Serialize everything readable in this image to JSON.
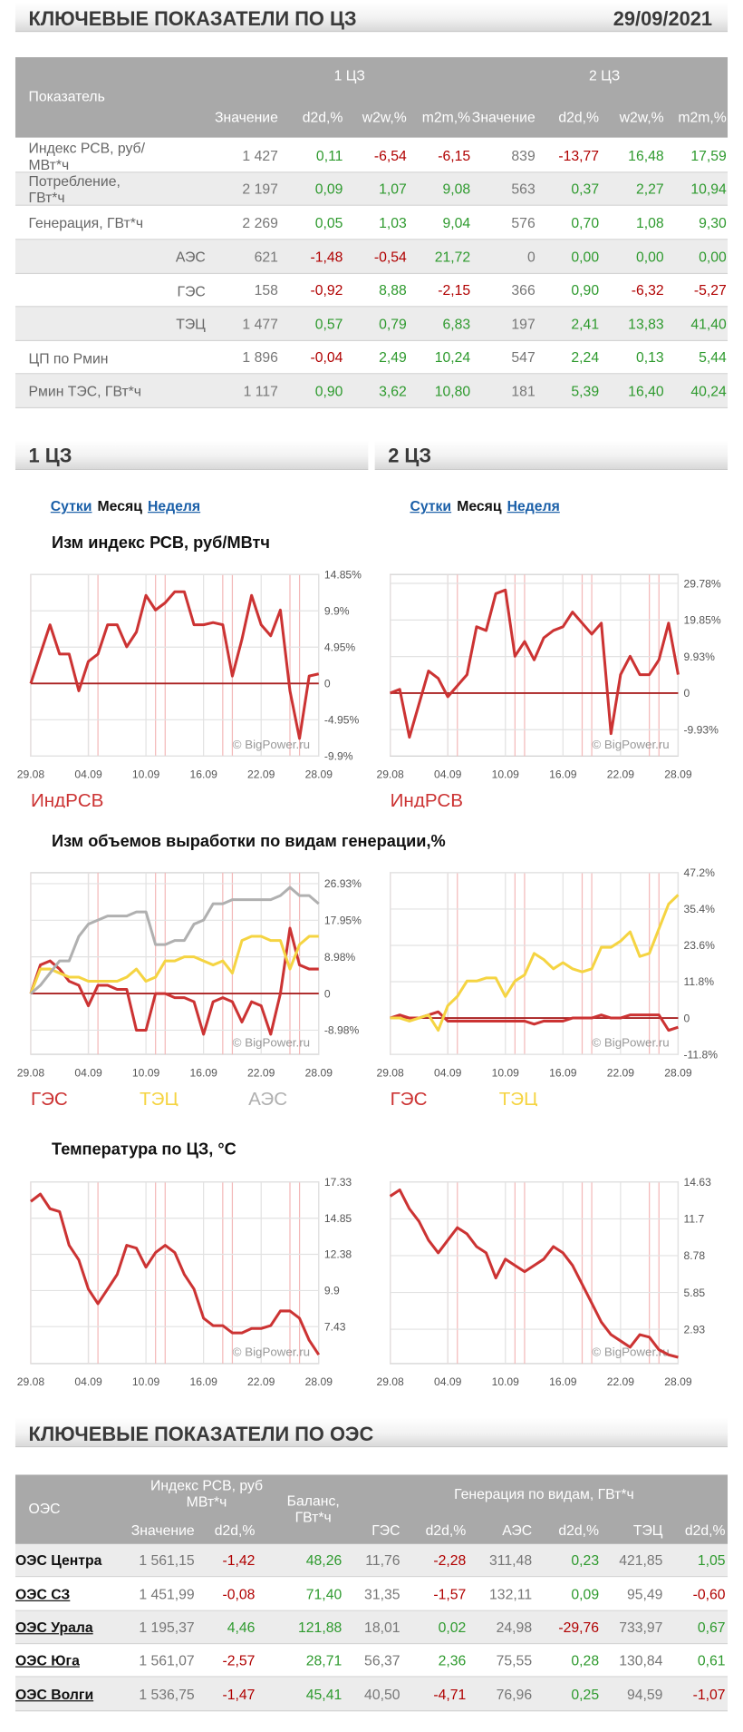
{
  "header": {
    "title": "КЛЮЧЕВЫЕ ПОКАЗАТЕЛИ ПО ЦЗ",
    "date": "29/09/2021"
  },
  "table1": {
    "columns": [
      "Показатель",
      "1 ЦЗ",
      "2 ЦЗ"
    ],
    "subcolumns": [
      "Значение",
      "d2d,%",
      "w2w,%",
      "m2m,%",
      "Значение",
      "d2d,%",
      "w2w,%",
      "m2m,%"
    ],
    "rows": [
      {
        "label": "Индекс РСВ, руб/МВт*ч",
        "indent": false,
        "cells": [
          "1 427",
          "0,11",
          "-6,54",
          "-6,15",
          "839",
          "-13,77",
          "16,48",
          "17,59"
        ]
      },
      {
        "label": "Потребление, ГВт*ч",
        "indent": false,
        "cells": [
          "2 197",
          "0,09",
          "1,07",
          "9,08",
          "563",
          "0,37",
          "2,27",
          "10,94"
        ]
      },
      {
        "label": "Генерация, ГВт*ч",
        "indent": false,
        "cells": [
          "2 269",
          "0,05",
          "1,03",
          "9,04",
          "576",
          "0,70",
          "1,08",
          "9,30"
        ]
      },
      {
        "label": "АЭС",
        "indent": true,
        "cells": [
          "621",
          "-1,48",
          "-0,54",
          "21,72",
          "0",
          "0,00",
          "0,00",
          "0,00"
        ]
      },
      {
        "label": "ГЭС",
        "indent": true,
        "cells": [
          "158",
          "-0,92",
          "8,88",
          "-2,15",
          "366",
          "0,90",
          "-6,32",
          "-5,27"
        ]
      },
      {
        "label": "ТЭЦ",
        "indent": true,
        "cells": [
          "1 477",
          "0,57",
          "0,79",
          "6,83",
          "197",
          "2,41",
          "13,83",
          "41,40"
        ]
      },
      {
        "label": "ЦП по Рмин",
        "indent": false,
        "cells": [
          "1 896",
          "-0,04",
          "2,49",
          "10,24",
          "547",
          "2,24",
          "0,13",
          "5,44"
        ]
      },
      {
        "label": "Рмин ТЭС, ГВт*ч",
        "indent": false,
        "cells": [
          "1 117",
          "0,90",
          "3,62",
          "10,80",
          "181",
          "5,39",
          "16,40",
          "40,24"
        ]
      }
    ]
  },
  "zones": [
    "1 ЦЗ",
    "2 ЦЗ"
  ],
  "period_links": [
    "Сутки",
    "Месяц",
    "Неделя"
  ],
  "period_active": 1,
  "chart_titles": [
    "Изм индекс РСВ, руб/МВтч",
    "Изм объемов выработки по видам генерации,%",
    "Температура по ЦЗ, °C"
  ],
  "chart_data": [
    {
      "type": "line",
      "watermark": "© BigPower.ru",
      "categories": [
        "29.08",
        null,
        null,
        null,
        null,
        null,
        "04.09",
        null,
        null,
        null,
        null,
        null,
        "10.09",
        null,
        null,
        null,
        null,
        null,
        "16.09",
        null,
        null,
        null,
        null,
        null,
        "22.09",
        null,
        null,
        null,
        null,
        null,
        "28.09"
      ],
      "series": [
        {
          "name": "ИндРСВ",
          "color": "#cc3333",
          "values": [
            0,
            4,
            8,
            4,
            4,
            -1,
            3,
            4,
            8,
            8,
            5,
            7,
            12,
            10,
            11,
            12.5,
            12.5,
            8,
            8,
            8.3,
            8,
            1,
            6,
            12,
            8,
            6.5,
            10,
            -1,
            -7.5,
            1,
            1.3
          ]
        }
      ],
      "ylim": [
        -9.9,
        14.85
      ],
      "yticks": [
        {
          "value": 14.85,
          "label": "14.85%"
        },
        {
          "value": 9.9,
          "label": "9.9%"
        },
        {
          "value": 4.95,
          "label": "4.95%"
        },
        0,
        {
          "value": -4.95,
          "label": "-4.95%"
        },
        {
          "value": -9.9,
          "label": "-9.9%"
        }
      ],
      "zero_line_color": "#aa2222"
    },
    {
      "type": "line",
      "watermark": "© BigPower.ru",
      "categories": [
        "29.08",
        null,
        null,
        null,
        null,
        null,
        "04.09",
        null,
        null,
        null,
        null,
        null,
        "10.09",
        null,
        null,
        null,
        null,
        null,
        "16.09",
        null,
        null,
        null,
        null,
        null,
        "22.09",
        null,
        null,
        null,
        null,
        null,
        "28.09"
      ],
      "series": [
        {
          "name": "ИндРСВ",
          "color": "#cc3333",
          "values": [
            0,
            1,
            -12,
            -3,
            6,
            4,
            -1,
            2,
            5,
            18,
            17,
            27,
            28,
            10,
            14,
            9,
            15,
            17,
            18,
            22,
            19,
            16,
            19,
            -11,
            5,
            10,
            5,
            5,
            9,
            19,
            5
          ]
        }
      ],
      "ylim": [
        -17.1,
        32.2
      ],
      "yticks": [
        {
          "value": 29.78,
          "label": "29.78%"
        },
        {
          "value": 19.85,
          "label": "19.85%"
        },
        {
          "value": 9.93,
          "label": "9.93%"
        },
        0,
        {
          "value": -9.93,
          "label": "-9.93%"
        }
      ],
      "zero_line_color": "#aa2222"
    },
    {
      "type": "line",
      "watermark": "© BigPower.ru",
      "categories": [
        "29.08",
        null,
        null,
        null,
        null,
        null,
        "04.09",
        null,
        null,
        null,
        null,
        null,
        "10.09",
        null,
        null,
        null,
        null,
        null,
        "16.09",
        null,
        null,
        null,
        null,
        null,
        "22.09",
        null,
        null,
        null,
        null,
        null,
        "28.09"
      ],
      "series": [
        {
          "name": "ГЭС",
          "color": "#cc3333",
          "values": [
            0,
            7,
            8,
            6,
            3,
            2,
            -3,
            2,
            2,
            1,
            1,
            -9,
            -9,
            0,
            0,
            -1,
            -1,
            -2,
            -10,
            -2,
            -1,
            -2,
            -7,
            -2,
            -3,
            -10,
            0,
            16,
            7,
            6,
            6
          ]
        },
        {
          "name": "ТЭЦ",
          "color": "#f5d442",
          "values": [
            0,
            6,
            6,
            5,
            4,
            4,
            3,
            3,
            3,
            3,
            4,
            6,
            3,
            4,
            8,
            8,
            9,
            9,
            8,
            7,
            8,
            5,
            13,
            14,
            14,
            13,
            13,
            6,
            12,
            14,
            14
          ]
        },
        {
          "name": "АЭС",
          "color": "#b0b0b0",
          "values": [
            0,
            2,
            5,
            8,
            8,
            14,
            17,
            18,
            19,
            19,
            19,
            20,
            20,
            12,
            12,
            13,
            13,
            17,
            18,
            22,
            22,
            23,
            23,
            23,
            23,
            23,
            24,
            26,
            24,
            24,
            22
          ]
        }
      ],
      "ylim": [
        -14.9,
        29.6
      ],
      "yticks": [
        {
          "value": 26.93,
          "label": "26.93%"
        },
        {
          "value": 17.95,
          "label": "17.95%"
        },
        {
          "value": 8.98,
          "label": "8.98%"
        },
        0,
        {
          "value": -8.98,
          "label": "-8.98%"
        }
      ],
      "zero_line_color": "#aa2222"
    },
    {
      "type": "line",
      "watermark": "© BigPower.ru",
      "categories": [
        "29.08",
        null,
        null,
        null,
        null,
        null,
        "04.09",
        null,
        null,
        null,
        null,
        null,
        "10.09",
        null,
        null,
        null,
        null,
        null,
        "16.09",
        null,
        null,
        null,
        null,
        null,
        "22.09",
        null,
        null,
        null,
        null,
        null,
        "28.09"
      ],
      "series": [
        {
          "name": "ГЭС",
          "color": "#cc3333",
          "values": [
            0,
            1,
            0,
            0,
            1,
            2,
            -1,
            -1,
            -1,
            -1,
            -1,
            -1,
            -1,
            -1,
            -1,
            -2,
            -1,
            -1,
            -1,
            0,
            0,
            0,
            1,
            0,
            0,
            1,
            1,
            1,
            1,
            -4,
            -3
          ]
        },
        {
          "name": "ТЭЦ",
          "color": "#f5d442",
          "values": [
            0,
            0,
            -1,
            0,
            1,
            -4,
            4,
            7,
            12,
            12,
            13,
            13,
            7,
            12,
            14,
            21,
            19,
            16,
            18,
            16,
            15,
            16,
            23,
            23,
            25,
            28,
            20,
            21,
            29,
            37,
            40
          ]
        }
      ],
      "ylim": [
        -11.8,
        47.2
      ],
      "yticks": [
        {
          "value": 47.2,
          "label": "47.2%"
        },
        {
          "value": 35.4,
          "label": "35.4%"
        },
        {
          "value": 23.6,
          "label": "23.6%"
        },
        {
          "value": 11.8,
          "label": "11.8%"
        },
        0,
        {
          "value": -11.8,
          "label": "-11.8%"
        }
      ],
      "zero_line_color": "#aa2222"
    },
    {
      "type": "line",
      "watermark": "© BigPower.ru",
      "categories": [
        "29.08",
        null,
        null,
        null,
        null,
        null,
        "04.09",
        null,
        null,
        null,
        null,
        null,
        "10.09",
        null,
        null,
        null,
        null,
        null,
        "16.09",
        null,
        null,
        null,
        null,
        null,
        "22.09",
        null,
        null,
        null,
        null,
        null,
        "28.09"
      ],
      "series": [
        {
          "color": "#cc3333",
          "values": [
            16,
            16.5,
            15.5,
            15.3,
            13,
            12,
            10,
            9,
            10,
            11,
            13,
            12.8,
            11.5,
            12.5,
            13,
            12.5,
            11,
            10,
            8,
            7.5,
            7.5,
            7,
            7,
            7.3,
            7.3,
            7.5,
            8.5,
            8.5,
            8,
            6.5,
            5.5
          ]
        }
      ],
      "ylim": [
        4.9,
        17.33
      ],
      "yticks": [
        17.33,
        14.85,
        12.38,
        9.9,
        7.43
      ]
    },
    {
      "type": "line",
      "watermark": "© BigPower.ru",
      "categories": [
        "29.08",
        null,
        null,
        null,
        null,
        null,
        "04.09",
        null,
        null,
        null,
        null,
        null,
        "10.09",
        null,
        null,
        null,
        null,
        null,
        "16.09",
        null,
        null,
        null,
        null,
        null,
        "22.09",
        null,
        null,
        null,
        null,
        null,
        "28.09"
      ],
      "series": [
        {
          "color": "#cc3333",
          "values": [
            13.5,
            14,
            12.5,
            11.5,
            10,
            9,
            10,
            11,
            10.5,
            9.5,
            9,
            7,
            8.5,
            8,
            7.5,
            8,
            8.5,
            9.5,
            9,
            8,
            6.5,
            5,
            3.5,
            2.5,
            2,
            1.5,
            2.5,
            2.3,
            1.3,
            0.9,
            0.7
          ]
        }
      ],
      "ylim": [
        0.2,
        14.63
      ],
      "yticks": [
        14.63,
        11.7,
        8.78,
        5.85,
        2.93
      ]
    }
  ],
  "header2": {
    "title": "КЛЮЧЕВЫЕ ПОКАЗАТЕЛИ ПО ОЭС"
  },
  "table2": {
    "columns": [
      "ОЭС",
      "Индекс РСВ, руб МВт*ч",
      "Баланс, ГВт*ч",
      "Генерация по видам, ГВт*ч"
    ],
    "subcolumns": [
      "Значение",
      "d2d,%",
      "ГЭС",
      "d2d,%",
      "АЭС",
      "d2d,%",
      "ТЭЦ",
      "d2d,%"
    ],
    "rows": [
      {
        "name": "ОЭС Центра",
        "link": false,
        "cells": [
          "1 561,15",
          "-1,42",
          "48,26",
          "11,76",
          "-2,28",
          "311,48",
          "0,23",
          "421,85",
          "1,05"
        ]
      },
      {
        "name": "ОЭС СЗ",
        "link": true,
        "cells": [
          "1 451,99",
          "-0,08",
          "71,40",
          "31,35",
          "-1,57",
          "132,11",
          "0,09",
          "95,49",
          "-0,60"
        ]
      },
      {
        "name": "ОЭС Урала",
        "link": true,
        "cells": [
          "1 195,37",
          "4,46",
          "121,88",
          "18,01",
          "0,02",
          "24,98",
          "-29,76",
          "733,97",
          "0,67"
        ]
      },
      {
        "name": "ОЭС Юга",
        "link": true,
        "cells": [
          "1 561,07",
          "-2,57",
          "28,71",
          "56,37",
          "2,36",
          "75,55",
          "0,28",
          "130,84",
          "0,61"
        ]
      },
      {
        "name": "ОЭС Волги",
        "link": true,
        "cells": [
          "1 536,75",
          "-1,47",
          "45,41",
          "40,50",
          "-4,71",
          "76,96",
          "0,25",
          "94,59",
          "-1,07"
        ]
      }
    ]
  }
}
